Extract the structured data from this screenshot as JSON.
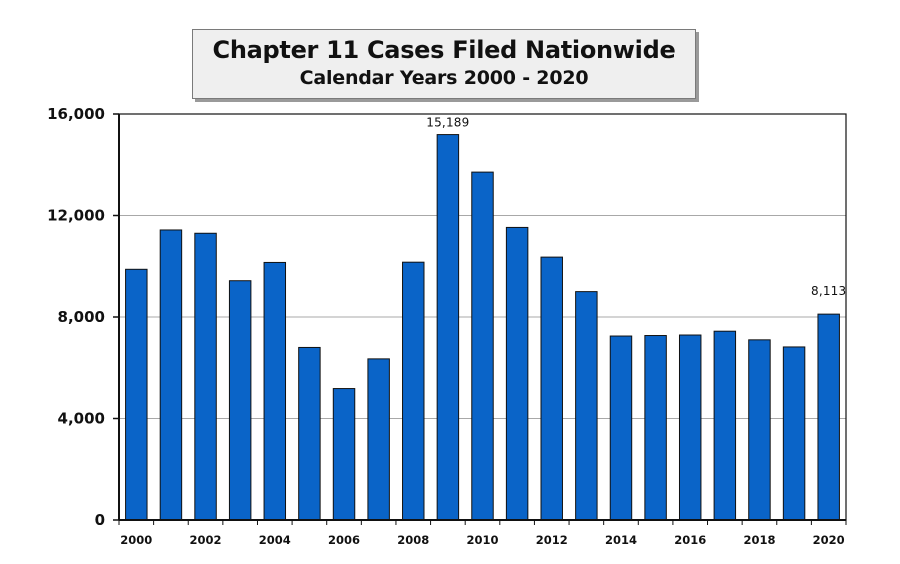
{
  "chart_data": {
    "type": "bar",
    "title": "Chapter 11 Cases Filed Nationwide",
    "subtitle": "Calendar Years  2000 - 2020",
    "xlabel": "",
    "ylabel": "",
    "ylim": [
      0,
      16000
    ],
    "y_ticks": [
      0,
      4000,
      8000,
      12000,
      16000
    ],
    "y_tick_labels": [
      "0",
      "4,000",
      "8,000",
      "12,000",
      "16,000"
    ],
    "x_tick_labels": [
      "2000",
      "2002",
      "2004",
      "2006",
      "2008",
      "2010",
      "2012",
      "2014",
      "2016",
      "2018",
      "2020"
    ],
    "grid": true,
    "legend": "none",
    "bar_color": "#0a64c8",
    "categories": [
      "2000",
      "2001",
      "2002",
      "2003",
      "2004",
      "2005",
      "2006",
      "2007",
      "2008",
      "2009",
      "2010",
      "2011",
      "2012",
      "2013",
      "2014",
      "2015",
      "2016",
      "2017",
      "2018",
      "2019",
      "2020"
    ],
    "values": [
      9880,
      11430,
      11300,
      9430,
      10150,
      6800,
      5180,
      6350,
      10160,
      15189,
      13710,
      11530,
      10360,
      9000,
      7250,
      7270,
      7290,
      7440,
      7100,
      6820,
      8113
    ],
    "data_labels": [
      {
        "index": 9,
        "text": "15,189"
      },
      {
        "index": 20,
        "text": "8,113"
      }
    ]
  }
}
